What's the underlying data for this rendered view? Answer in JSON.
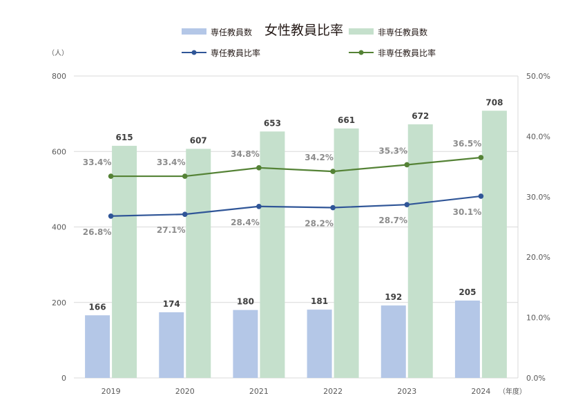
{
  "chart_data": {
    "type": "bar+line",
    "title": "女性教員比率",
    "categories": [
      "2019",
      "2020",
      "2021",
      "2022",
      "2023",
      "2024"
    ],
    "x_unit": "（年度）",
    "y_left": {
      "unit": "（人）",
      "range": [
        0,
        800
      ],
      "ticks": [
        "0",
        "200",
        "400",
        "600",
        "800"
      ]
    },
    "y_right": {
      "range": [
        0,
        50
      ],
      "ticks": [
        "0.0%",
        "10.0%",
        "20.0%",
        "30.0%",
        "40.0%",
        "50.0%"
      ]
    },
    "grid": true,
    "legend": "top",
    "series": [
      {
        "name": "専任教員数",
        "type": "bar",
        "axis": "left",
        "color": "#b4c7e7",
        "values": [
          166,
          174,
          180,
          181,
          192,
          205
        ]
      },
      {
        "name": "非専任教員数",
        "type": "bar",
        "axis": "left",
        "color": "#c5e0cc",
        "values": [
          615,
          607,
          653,
          661,
          672,
          708
        ]
      },
      {
        "name": "専任教員比率",
        "type": "line",
        "axis": "right",
        "color": "#2f5597",
        "values": [
          26.8,
          27.1,
          28.4,
          28.2,
          28.7,
          30.1
        ]
      },
      {
        "name": "非専任教員比率",
        "type": "line",
        "axis": "right",
        "color": "#548235",
        "values": [
          33.4,
          33.4,
          34.8,
          34.2,
          35.3,
          36.5
        ]
      }
    ]
  }
}
